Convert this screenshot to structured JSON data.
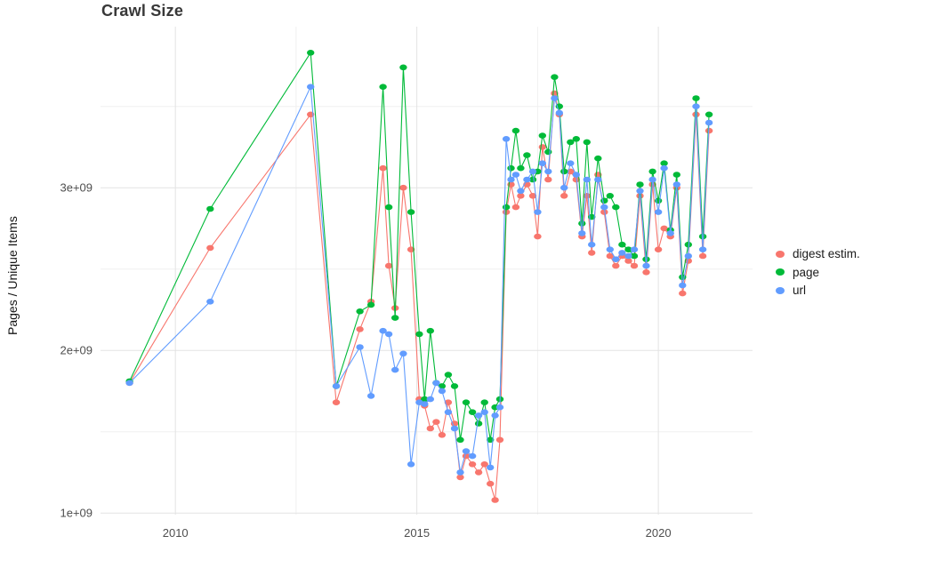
{
  "chart_data": {
    "type": "line",
    "title": "Crawl Size",
    "xlabel": "",
    "ylabel": "Pages / Unique Items",
    "value_unit": "1e9 (billions) of pages / unique items",
    "x_unit": "year of crawl",
    "grid": true,
    "legend_position": "right",
    "xlim": [
      2008.45,
      2021.95
    ],
    "ylim": [
      0.99,
      3.99
    ],
    "x_ticks": [
      {
        "value": 2010,
        "label": "2010"
      },
      {
        "value": 2015,
        "label": "2015"
      },
      {
        "value": 2020,
        "label": "2020"
      }
    ],
    "y_ticks": [
      {
        "value": 1,
        "label": "1e+09"
      },
      {
        "value": 2,
        "label": "2e+09"
      },
      {
        "value": 3,
        "label": "3e+09"
      }
    ],
    "x_minor_ticks": [
      2012.5,
      2017.5
    ],
    "y_minor_ticks": [
      1.5,
      2.5,
      3.5
    ],
    "x": [
      2009.05,
      2010.72,
      2012.8,
      2013.33,
      2013.82,
      2014.05,
      2014.3,
      2014.42,
      2014.55,
      2014.72,
      2014.88,
      2015.05,
      2015.16,
      2015.28,
      2015.4,
      2015.52,
      2015.65,
      2015.78,
      2015.9,
      2016.02,
      2016.15,
      2016.28,
      2016.4,
      2016.52,
      2016.62,
      2016.72,
      2016.85,
      2016.95,
      2017.05,
      2017.15,
      2017.28,
      2017.4,
      2017.5,
      2017.6,
      2017.72,
      2017.85,
      2017.95,
      2018.05,
      2018.18,
      2018.3,
      2018.42,
      2018.52,
      2018.62,
      2018.75,
      2018.88,
      2019.0,
      2019.12,
      2019.25,
      2019.38,
      2019.5,
      2019.62,
      2019.75,
      2019.88,
      2020.0,
      2020.12,
      2020.25,
      2020.38,
      2020.5,
      2020.62,
      2020.78,
      2020.92,
      2021.05
    ],
    "series": [
      {
        "name": "digest estim.",
        "color": "#F8766D",
        "values": [
          1.8,
          2.63,
          3.45,
          1.68,
          2.13,
          2.3,
          3.12,
          2.52,
          2.26,
          3.0,
          2.62,
          1.7,
          1.66,
          1.52,
          1.56,
          1.48,
          1.68,
          1.55,
          1.22,
          1.35,
          1.3,
          1.25,
          1.3,
          1.18,
          1.08,
          1.45,
          2.85,
          3.02,
          2.88,
          2.95,
          3.02,
          2.95,
          2.7,
          3.25,
          3.05,
          3.58,
          3.45,
          2.95,
          3.1,
          3.05,
          2.7,
          2.95,
          2.6,
          3.08,
          2.85,
          2.58,
          2.52,
          2.58,
          2.55,
          2.52,
          2.95,
          2.48,
          3.02,
          2.62,
          2.75,
          2.7,
          3.0,
          2.35,
          2.55,
          3.45,
          2.58,
          3.35
        ]
      },
      {
        "name": "page",
        "color": "#00BA38",
        "values": [
          1.81,
          2.87,
          3.83,
          1.78,
          2.24,
          2.28,
          3.62,
          2.88,
          2.2,
          3.74,
          2.85,
          2.1,
          1.7,
          2.12,
          1.8,
          1.78,
          1.85,
          1.78,
          1.45,
          1.68,
          1.62,
          1.55,
          1.68,
          1.45,
          1.65,
          1.7,
          2.88,
          3.12,
          3.35,
          3.12,
          3.2,
          3.05,
          3.1,
          3.32,
          3.22,
          3.68,
          3.5,
          3.1,
          3.28,
          3.3,
          2.78,
          3.28,
          2.82,
          3.18,
          2.92,
          2.95,
          2.88,
          2.65,
          2.62,
          2.58,
          3.02,
          2.56,
          3.1,
          2.92,
          3.15,
          2.74,
          3.08,
          2.45,
          2.65,
          3.55,
          2.7,
          3.45
        ]
      },
      {
        "name": "url",
        "color": "#619CFF",
        "values": [
          1.8,
          2.3,
          3.62,
          1.78,
          2.02,
          1.72,
          2.12,
          2.1,
          1.88,
          1.98,
          1.3,
          1.68,
          1.67,
          1.7,
          1.8,
          1.75,
          1.62,
          1.52,
          1.25,
          1.38,
          1.35,
          1.6,
          1.62,
          1.28,
          1.6,
          1.65,
          3.3,
          3.05,
          3.08,
          2.98,
          3.05,
          3.1,
          2.85,
          3.15,
          3.1,
          3.55,
          3.46,
          3.0,
          3.15,
          3.08,
          2.72,
          3.05,
          2.65,
          3.05,
          2.88,
          2.62,
          2.56,
          2.6,
          2.58,
          2.62,
          2.98,
          2.52,
          3.05,
          2.85,
          3.12,
          2.72,
          3.02,
          2.4,
          2.58,
          3.5,
          2.62,
          3.4
        ]
      }
    ],
    "style": {
      "grid_major_color": "#e3e3e3",
      "grid_minor_color": "#f0f0f0",
      "tick_label_color": "#4e4e4e",
      "background": "#ffffff"
    }
  }
}
